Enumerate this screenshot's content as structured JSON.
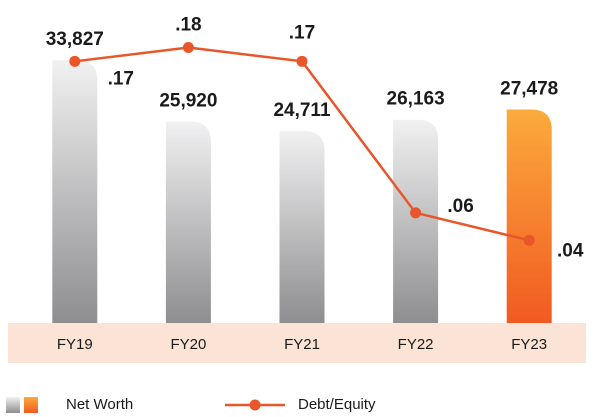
{
  "chart_data": {
    "type": "combo",
    "categories": [
      "FY19",
      "FY20",
      "FY21",
      "FY22",
      "FY23"
    ],
    "series": [
      {
        "name": "Net Worth",
        "type": "bar",
        "colors": [
          "#8e8e90",
          "#8e8e90",
          "#8e8e90",
          "#8e8e90",
          "#f15a22"
        ],
        "values": [
          33827,
          25920,
          24711,
          26163,
          27478
        ],
        "value_labels": [
          "33,827",
          "25,920",
          "24,711",
          "26,163",
          "27,478"
        ]
      },
      {
        "name": "Debt/Equity",
        "type": "line",
        "axis": "y2",
        "color": "#e8562a",
        "values": [
          0.17,
          0.18,
          0.17,
          0.06,
          0.04
        ],
        "value_labels": [
          ".17",
          ".18",
          ".17",
          ".06",
          ".04"
        ]
      }
    ],
    "ylim": [
      0,
      39000
    ],
    "y2lim": [
      -0.02,
      0.2
    ]
  }
}
